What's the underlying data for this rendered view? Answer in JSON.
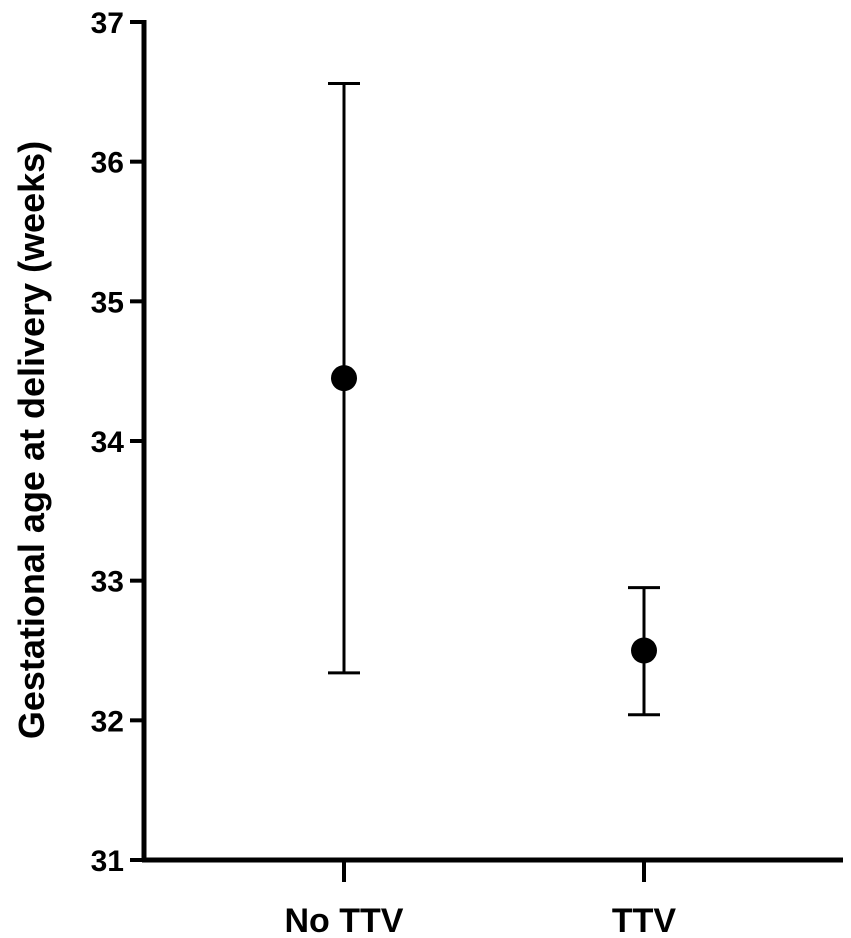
{
  "chart_data": {
    "type": "scatter",
    "title": "",
    "xlabel": "",
    "ylabel": "Gestational age at delivery (weeks)",
    "ylim": [
      31,
      37
    ],
    "yticks": [
      31,
      32,
      33,
      34,
      35,
      36,
      37
    ],
    "grid": false,
    "categories": [
      "No TTV",
      "TTV"
    ],
    "series": [
      {
        "values": [
          34.45,
          32.5
        ],
        "error_low": [
          32.34,
          32.04
        ],
        "error_high": [
          36.56,
          32.95
        ]
      }
    ],
    "colors": {
      "marker": "#000000",
      "axis": "#000000"
    }
  }
}
